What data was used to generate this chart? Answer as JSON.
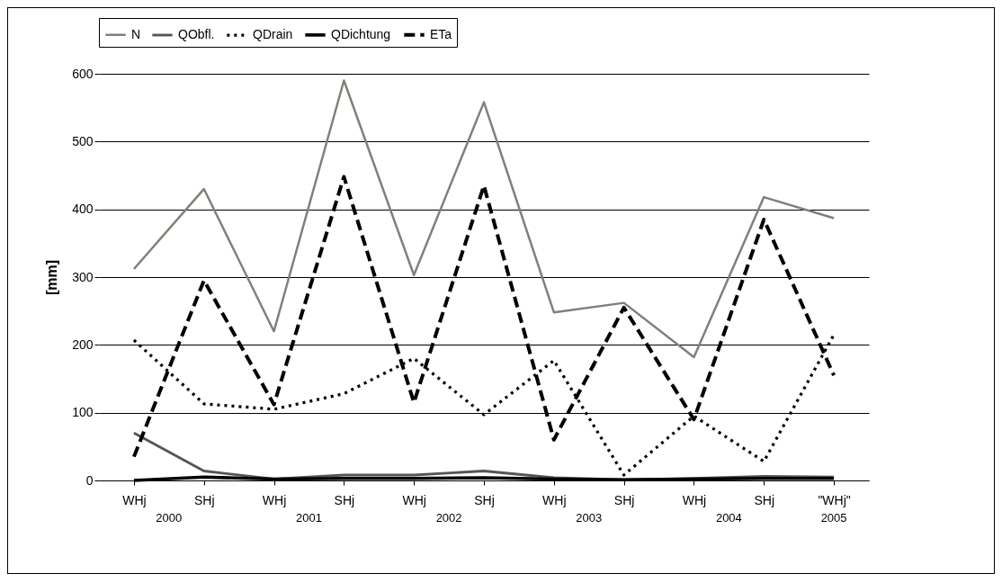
{
  "chart_data": {
    "type": "line",
    "ylabel": "[mm]",
    "categories": [
      "WHj",
      "SHj",
      "WHj",
      "SHj",
      "WHj",
      "SHj",
      "WHj",
      "SHj",
      "WHj",
      "SHj",
      "\"WHj\""
    ],
    "series": [
      {
        "name": "N",
        "color": "#808078",
        "line_style": "solid",
        "values": [
          312,
          430,
          220,
          590,
          303,
          558,
          248,
          262,
          182,
          418,
          387
        ]
      },
      {
        "name": "QObfl.",
        "color": "#555555",
        "line_style": "solid",
        "values": [
          70,
          14,
          2,
          8,
          8,
          14,
          4,
          1,
          3,
          6,
          5
        ]
      },
      {
        "name": "QDrain",
        "color": "#000000",
        "line_style": "dotted",
        "values": [
          207,
          113,
          105,
          128,
          180,
          97,
          177,
          8,
          95,
          28,
          215
        ]
      },
      {
        "name": "QDichtung",
        "color": "#000000",
        "line_style": "solid",
        "values": [
          0,
          5,
          2,
          3,
          3,
          4,
          2,
          1,
          2,
          3,
          3
        ]
      },
      {
        "name": "ETa",
        "color": "#000000",
        "line_style": "dashed",
        "values": [
          35,
          295,
          112,
          448,
          115,
          435,
          60,
          255,
          90,
          385,
          155
        ]
      }
    ],
    "ylim": [
      0,
      600
    ],
    "yticks": [
      0,
      100,
      200,
      300,
      400,
      500,
      600
    ],
    "grid": "y",
    "legend": "top",
    "annotations": [
      "2000",
      "2001",
      "2002",
      "2003",
      "2004",
      "2005"
    ]
  }
}
